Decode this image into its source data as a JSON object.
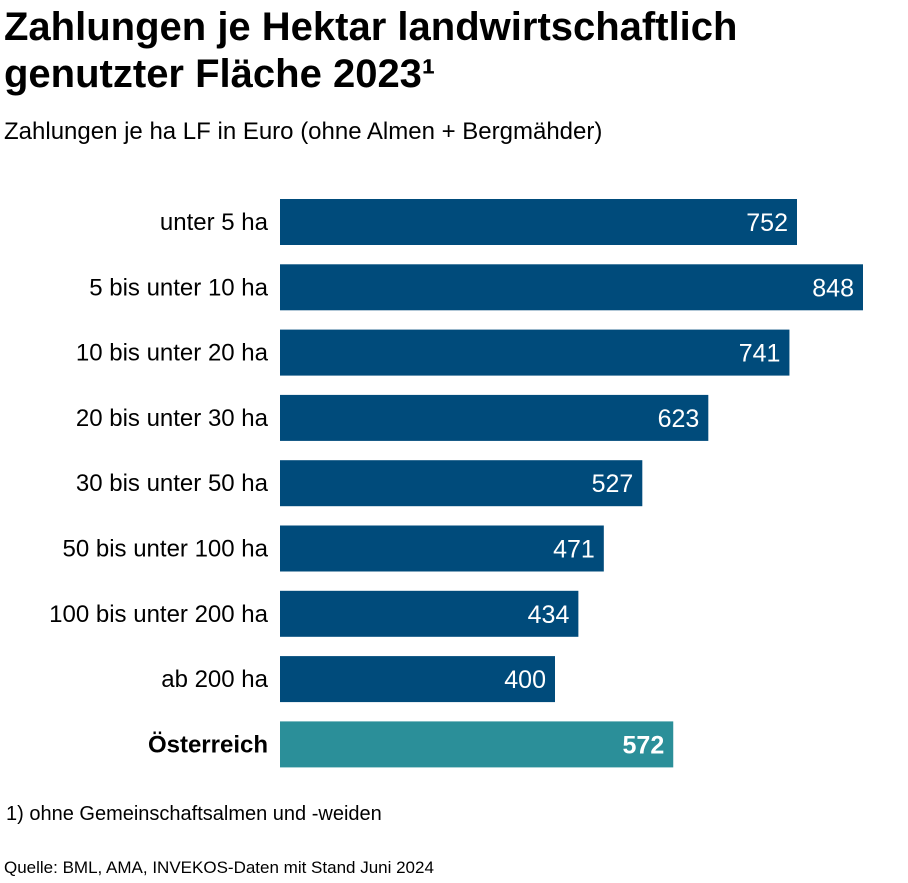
{
  "chart_data": {
    "type": "bar",
    "orientation": "horizontal",
    "title": "Zahlungen je Hektar landwirtschaftlich genutzter Fläche 2023¹",
    "subtitle": "Zahlungen je ha LF in Euro (ohne Almen + Bergmähder)",
    "categories": [
      "unter 5 ha",
      "5 bis unter 10 ha",
      "10 bis unter 20 ha",
      "20 bis unter 30 ha",
      "30 bis unter 50 ha",
      "50 bis unter 100 ha",
      "100 bis unter 200 ha",
      "ab 200 ha",
      "Österreich"
    ],
    "values": [
      752,
      848,
      741,
      623,
      527,
      471,
      434,
      400,
      572
    ],
    "highlight": [
      false,
      false,
      false,
      false,
      false,
      false,
      false,
      false,
      true
    ],
    "xlim": [
      0,
      848
    ],
    "colors": {
      "default": "#004b7b",
      "highlight": "#2b8f99"
    },
    "footnote": "1) ohne Gemeinschaftsalmen und -weiden",
    "source": "Quelle: BML, AMA, INVEKOS-Daten mit Stand Juni 2024"
  }
}
